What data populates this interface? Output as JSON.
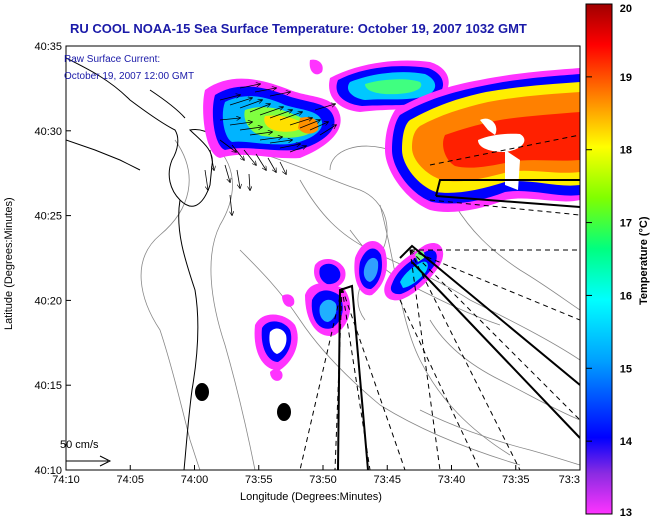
{
  "chart_data": {
    "type": "heatmap",
    "title": "RU COOL  NOAA-15  Sea Surface Temperature:  October 19, 2007 1032 GMT",
    "xlabel": "Longitude (Degrees:Minutes)",
    "ylabel": "Latitude (Degrees:Minutes)",
    "x_ticks": [
      "74:10",
      "74:05",
      "74:00",
      "73:55",
      "73:50",
      "73:45",
      "73:40",
      "73:35",
      "73:3"
    ],
    "y_ticks": [
      "40:35",
      "40:30",
      "40:25",
      "40:20",
      "40:15",
      "40:10"
    ],
    "xlim": [
      "74:10",
      "73:30"
    ],
    "ylim": [
      "40:10",
      "40:35"
    ],
    "annotation_lines": [
      "Raw Surface Current:",
      "October 19, 2007 12:00 GMT"
    ],
    "scale_label": "50 cm/s",
    "colorbar": {
      "label": "Temperature (°C)",
      "min": 13,
      "max": 20,
      "ticks": [
        "20",
        "19",
        "18",
        "17",
        "16",
        "15",
        "14",
        "13"
      ]
    },
    "patches": [
      {
        "region": "north-west",
        "lon": [
          -74.01,
          -73.88
        ],
        "lat": [
          40.47,
          40.54
        ],
        "temp_range": [
          13,
          18
        ]
      },
      {
        "region": "north",
        "lon": [
          -73.88,
          -73.72
        ],
        "lat": [
          40.5,
          40.57
        ],
        "temp_range": [
          13,
          16
        ]
      },
      {
        "region": "north-east",
        "lon": [
          -73.72,
          -73.5
        ],
        "lat": [
          40.43,
          40.57
        ],
        "temp_range": [
          14,
          19
        ]
      },
      {
        "region": "south-west",
        "lon": [
          -73.97,
          -73.83
        ],
        "lat": [
          40.23,
          40.33
        ],
        "temp_range": [
          13,
          15
        ]
      },
      {
        "region": "south-central",
        "lon": [
          -73.81,
          -73.76
        ],
        "lat": [
          40.33,
          40.39
        ],
        "temp_range": [
          13,
          15
        ]
      },
      {
        "region": "south-east",
        "lon": [
          -73.76,
          -73.68
        ],
        "lat": [
          40.33,
          40.39
        ],
        "temp_range": [
          13,
          15
        ]
      }
    ],
    "vectors": "surface current arrows (~50 cm/s scale) concentrated near 40:28–40:33 N, 73:52–74:00 W"
  }
}
